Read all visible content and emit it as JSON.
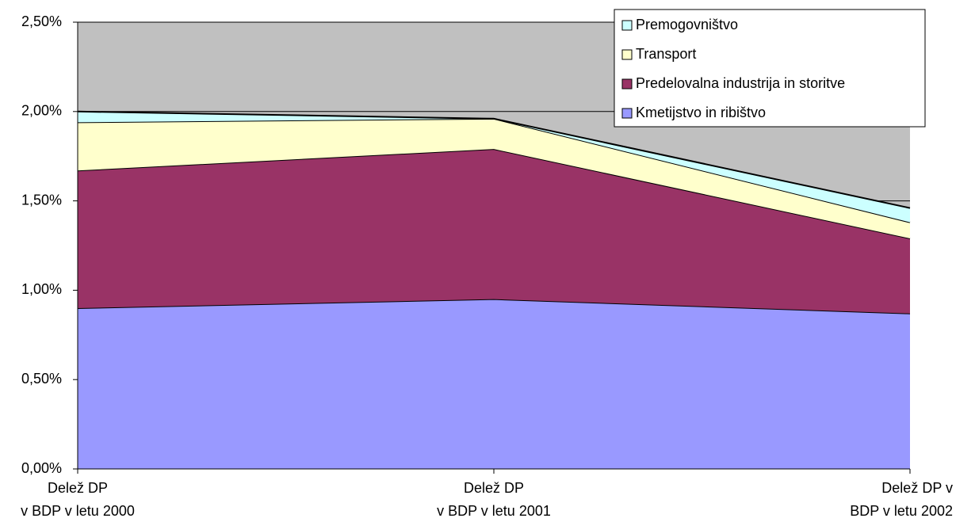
{
  "chart_data": {
    "type": "stacked_area",
    "categories": [
      [
        "Delež DP",
        "v BDP v letu 2000"
      ],
      [
        "Delež DP",
        "v BDP v letu 2001"
      ],
      [
        "Delež DP v",
        "BDP v letu  2002"
      ]
    ],
    "series": [
      {
        "name": "Kmetijstvo in ribištvo",
        "color": "#9999ff",
        "values": [
          0.9,
          0.95,
          0.87
        ]
      },
      {
        "name": "Predelovalna industrija in storitve",
        "color": "#993366",
        "values": [
          0.77,
          0.84,
          0.42
        ]
      },
      {
        "name": "Transport",
        "color": "#ffffcc",
        "values": [
          0.27,
          0.17,
          0.09
        ]
      },
      {
        "name": "Premogovništvo",
        "color": "#ccffff",
        "values": [
          0.06,
          0.0,
          0.08
        ]
      }
    ],
    "ylim": [
      0,
      2.5
    ],
    "yticks": [
      {
        "value": 0,
        "label": "0,00%"
      },
      {
        "value": 0.5,
        "label": "0,50%"
      },
      {
        "value": 1,
        "label": "1,00%"
      },
      {
        "value": 1.5,
        "label": "1,50%"
      },
      {
        "value": 2,
        "label": "2,00%"
      },
      {
        "value": 2.5,
        "label": "2,50%"
      }
    ],
    "grid": true,
    "legend": "top-right",
    "plot_background": "#c0c0c0"
  }
}
